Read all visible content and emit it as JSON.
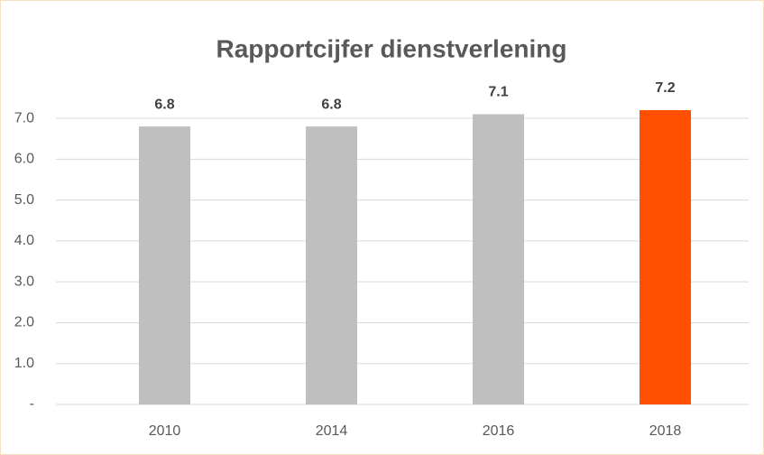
{
  "chart_data": {
    "type": "bar",
    "title": "Rapportcijfer dienstverlening",
    "categories": [
      "2010",
      "2014",
      "2016",
      "2018"
    ],
    "values": [
      6.8,
      6.8,
      7.1,
      7.2
    ],
    "colors": [
      "#bfbfbf",
      "#bfbfbf",
      "#bfbfbf",
      "#ff5000"
    ],
    "ylim": [
      0,
      7.2
    ],
    "yticks": [
      {
        "value": 0,
        "label": "-"
      },
      {
        "value": 1,
        "label": "1.0"
      },
      {
        "value": 2,
        "label": "2.0"
      },
      {
        "value": 3,
        "label": "3.0"
      },
      {
        "value": 4,
        "label": "4.0"
      },
      {
        "value": 5,
        "label": "5.0"
      },
      {
        "value": 6,
        "label": "6.0"
      },
      {
        "value": 7,
        "label": "7.0"
      }
    ],
    "grid": true
  }
}
